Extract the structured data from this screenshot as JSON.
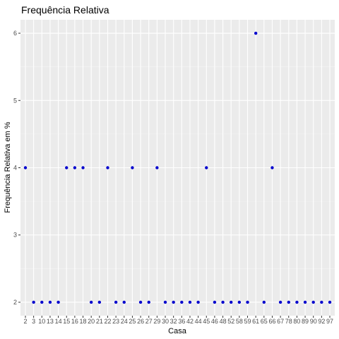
{
  "chart_data": {
    "type": "scatter",
    "title": "Frequência Relativa",
    "xlabel": "Casa",
    "ylabel": "Frequência Relativa em %",
    "categories": [
      "2",
      "3",
      "10",
      "13",
      "14",
      "15",
      "16",
      "18",
      "20",
      "21",
      "22",
      "23",
      "24",
      "25",
      "26",
      "27",
      "29",
      "30",
      "32",
      "36",
      "42",
      "44",
      "45",
      "46",
      "48",
      "52",
      "58",
      "59",
      "61",
      "65",
      "66",
      "67",
      "78",
      "80",
      "89",
      "90",
      "92",
      "97"
    ],
    "values": [
      4,
      2,
      2,
      2,
      2,
      4,
      4,
      4,
      2,
      2,
      4,
      2,
      2,
      4,
      2,
      2,
      4,
      2,
      2,
      2,
      2,
      2,
      4,
      2,
      2,
      2,
      2,
      2,
      6,
      2,
      4,
      2,
      2,
      2,
      2,
      2,
      2,
      2
    ],
    "yticks": [
      2,
      3,
      4,
      5,
      6
    ],
    "ylim": [
      1.8,
      6.2
    ],
    "grid": true,
    "colors": {
      "point": "#0000CD",
      "panel": "#EBEBEB",
      "grid_major": "#FFFFFF",
      "grid_minor": "#F5F5F5"
    }
  }
}
